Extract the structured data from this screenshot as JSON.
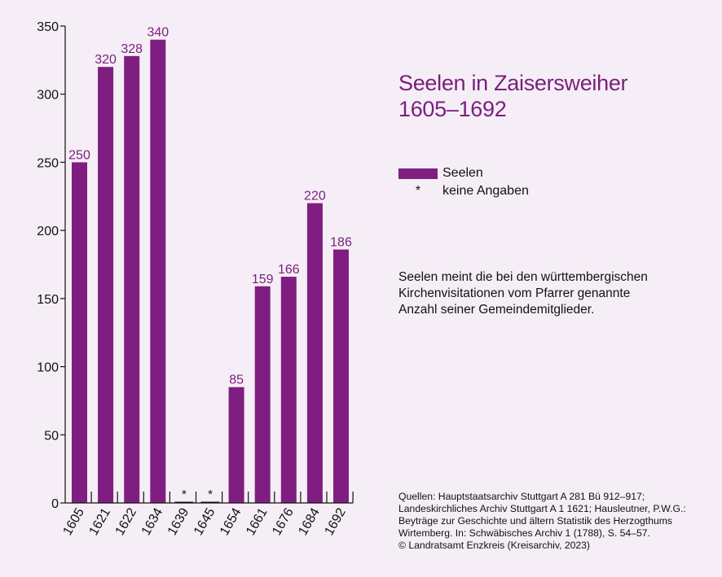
{
  "title_lines": [
    "Seelen in Zaisersweiher",
    "1605–1692"
  ],
  "legend": {
    "series_label": "Seelen",
    "missing_symbol": "*",
    "missing_label": "keine Angaben"
  },
  "note_lines": [
    "Seelen meint die bei den württembergischen",
    "Kirchenvisitationen vom Pfarrer genannte",
    "Anzahl seiner Gemeindemitglieder."
  ],
  "sources_lines": [
    "Quellen: Hauptstaatsarchiv Stuttgart A 281 Bü 912–917;",
    "Landeskirchliches Archiv Stuttgart A 1 1621; Hausleutner, P.W.G.:",
    "Beyträge zur Geschichte und ältern Statistik des Herzogthums",
    "Wirtemberg. In: Schwäbisches Archiv 1 (1788), S. 54–57.",
    "© Landratsamt Enzkreis (Kreisarchiv, 2023)"
  ],
  "colors": {
    "bar": "#7f1e80",
    "label": "#7a1e7e",
    "axis": "#111111",
    "background": "#f5eef6"
  },
  "chart_data": {
    "type": "bar",
    "categories": [
      "1605",
      "1621",
      "1622",
      "1634",
      "1639",
      "1645",
      "1654",
      "1661",
      "1676",
      "1684",
      "1692"
    ],
    "values": [
      250,
      320,
      328,
      340,
      null,
      null,
      85,
      159,
      166,
      220,
      186
    ],
    "data_labels": [
      "250",
      "320",
      "328",
      "340",
      "*",
      "*",
      "85",
      "159",
      "166",
      "220",
      "186"
    ],
    "yticks": [
      0,
      50,
      100,
      150,
      200,
      250,
      300,
      350
    ],
    "ylim": [
      0,
      350
    ],
    "xlabel": "",
    "ylabel": "",
    "grid": false,
    "legend_position": "right"
  }
}
